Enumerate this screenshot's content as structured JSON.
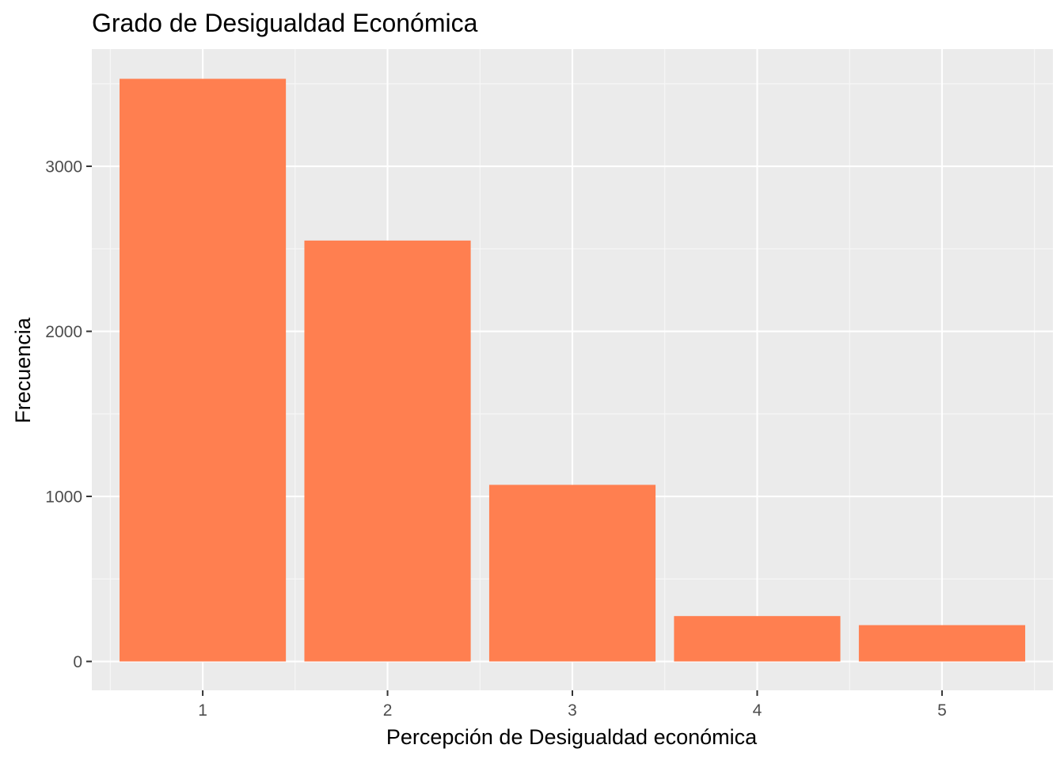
{
  "chart_data": {
    "type": "bar",
    "title": "Grado de Desigualdad Económica",
    "xlabel": "Percepción de Desigualdad económica",
    "ylabel": "Frecuencia",
    "categories": [
      "1",
      "2",
      "3",
      "4",
      "5"
    ],
    "values": [
      3530,
      2550,
      1070,
      275,
      220
    ],
    "ylim": [
      -175,
      3710
    ],
    "yticks": [
      0,
      1000,
      2000,
      3000
    ],
    "ytick_labels": [
      "0",
      "1000",
      "2000",
      "3000"
    ],
    "grid": true,
    "legend": "none",
    "colors": {
      "bar": "#FF7F50",
      "panel_background": "#EBEBEB",
      "grid_major": "#FFFFFF",
      "grid_minor": "#F7F7F7",
      "tick_text": "#4D4D4D",
      "tick_mark": "#333333"
    }
  }
}
